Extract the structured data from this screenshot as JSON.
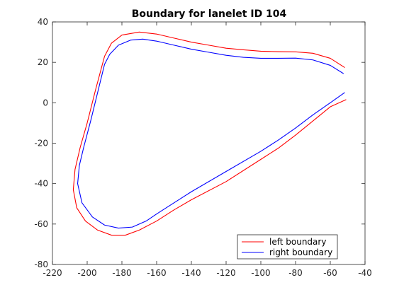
{
  "chart_data": {
    "type": "line",
    "title": "Boundary for lanelet ID 104",
    "xlabel": "",
    "ylabel": "",
    "xlim": [
      -220,
      -40
    ],
    "ylim": [
      -80,
      40
    ],
    "xticks": [
      -220,
      -200,
      -180,
      -160,
      -140,
      -120,
      -100,
      -80,
      -60,
      -40
    ],
    "yticks": [
      -80,
      -60,
      -40,
      -20,
      0,
      20,
      40
    ],
    "xtick_labels": [
      "-220",
      "-200",
      "-180",
      "-160",
      "-140",
      "-120",
      "-100",
      "-80",
      "-60",
      "-40"
    ],
    "ytick_labels": [
      "-80",
      "-60",
      "-40",
      "-20",
      "0",
      "20",
      "40"
    ],
    "grid": false,
    "legend_position": "bottom-right",
    "series": [
      {
        "name": "left boundary",
        "color": "#ff0000",
        "x": [
          -51.8,
          -60,
          -70,
          -80,
          -90,
          -100,
          -110,
          -120,
          -130,
          -140,
          -150,
          -160,
          -170,
          -180,
          -186,
          -190,
          -195,
          -200,
          -204,
          -207,
          -208,
          -206,
          -201,
          -194,
          -186,
          -178,
          -170,
          -160,
          -150,
          -140,
          -120,
          -100,
          -90,
          -80,
          -70,
          -60,
          -51
        ],
        "y": [
          17.5,
          22,
          24.5,
          25.2,
          25.3,
          25.5,
          26.2,
          27,
          28.5,
          30,
          32,
          34,
          35,
          33.5,
          29.5,
          23,
          7,
          -10,
          -22,
          -33,
          -43,
          -52,
          -58.5,
          -63,
          -65.5,
          -65.5,
          -63,
          -58.5,
          -53,
          -48,
          -39,
          -28,
          -22.5,
          -16,
          -9,
          -2,
          1.5
        ]
      },
      {
        "name": "right boundary",
        "color": "#0000ff",
        "x": [
          -52.5,
          -60,
          -70,
          -80,
          -90,
          -100,
          -110,
          -120,
          -130,
          -140,
          -150,
          -160,
          -168,
          -175,
          -182,
          -187,
          -190,
          -194,
          -198,
          -202,
          -204.5,
          -205.5,
          -203,
          -197,
          -190,
          -182,
          -174,
          -166,
          -160,
          -150,
          -140,
          -120,
          -100,
          -90,
          -80,
          -70,
          -60,
          -51.8
        ],
        "y": [
          14.5,
          18.5,
          21.2,
          22.1,
          22,
          22,
          22.5,
          23.5,
          25,
          26.5,
          28.5,
          30.5,
          31.5,
          31,
          28.5,
          24,
          19,
          5,
          -9,
          -22,
          -31,
          -40,
          -49.5,
          -56.5,
          -60.5,
          -62,
          -61.5,
          -58.5,
          -55,
          -49.5,
          -44,
          -34,
          -24,
          -18.5,
          -12.5,
          -6,
          0,
          5
        ]
      }
    ]
  }
}
